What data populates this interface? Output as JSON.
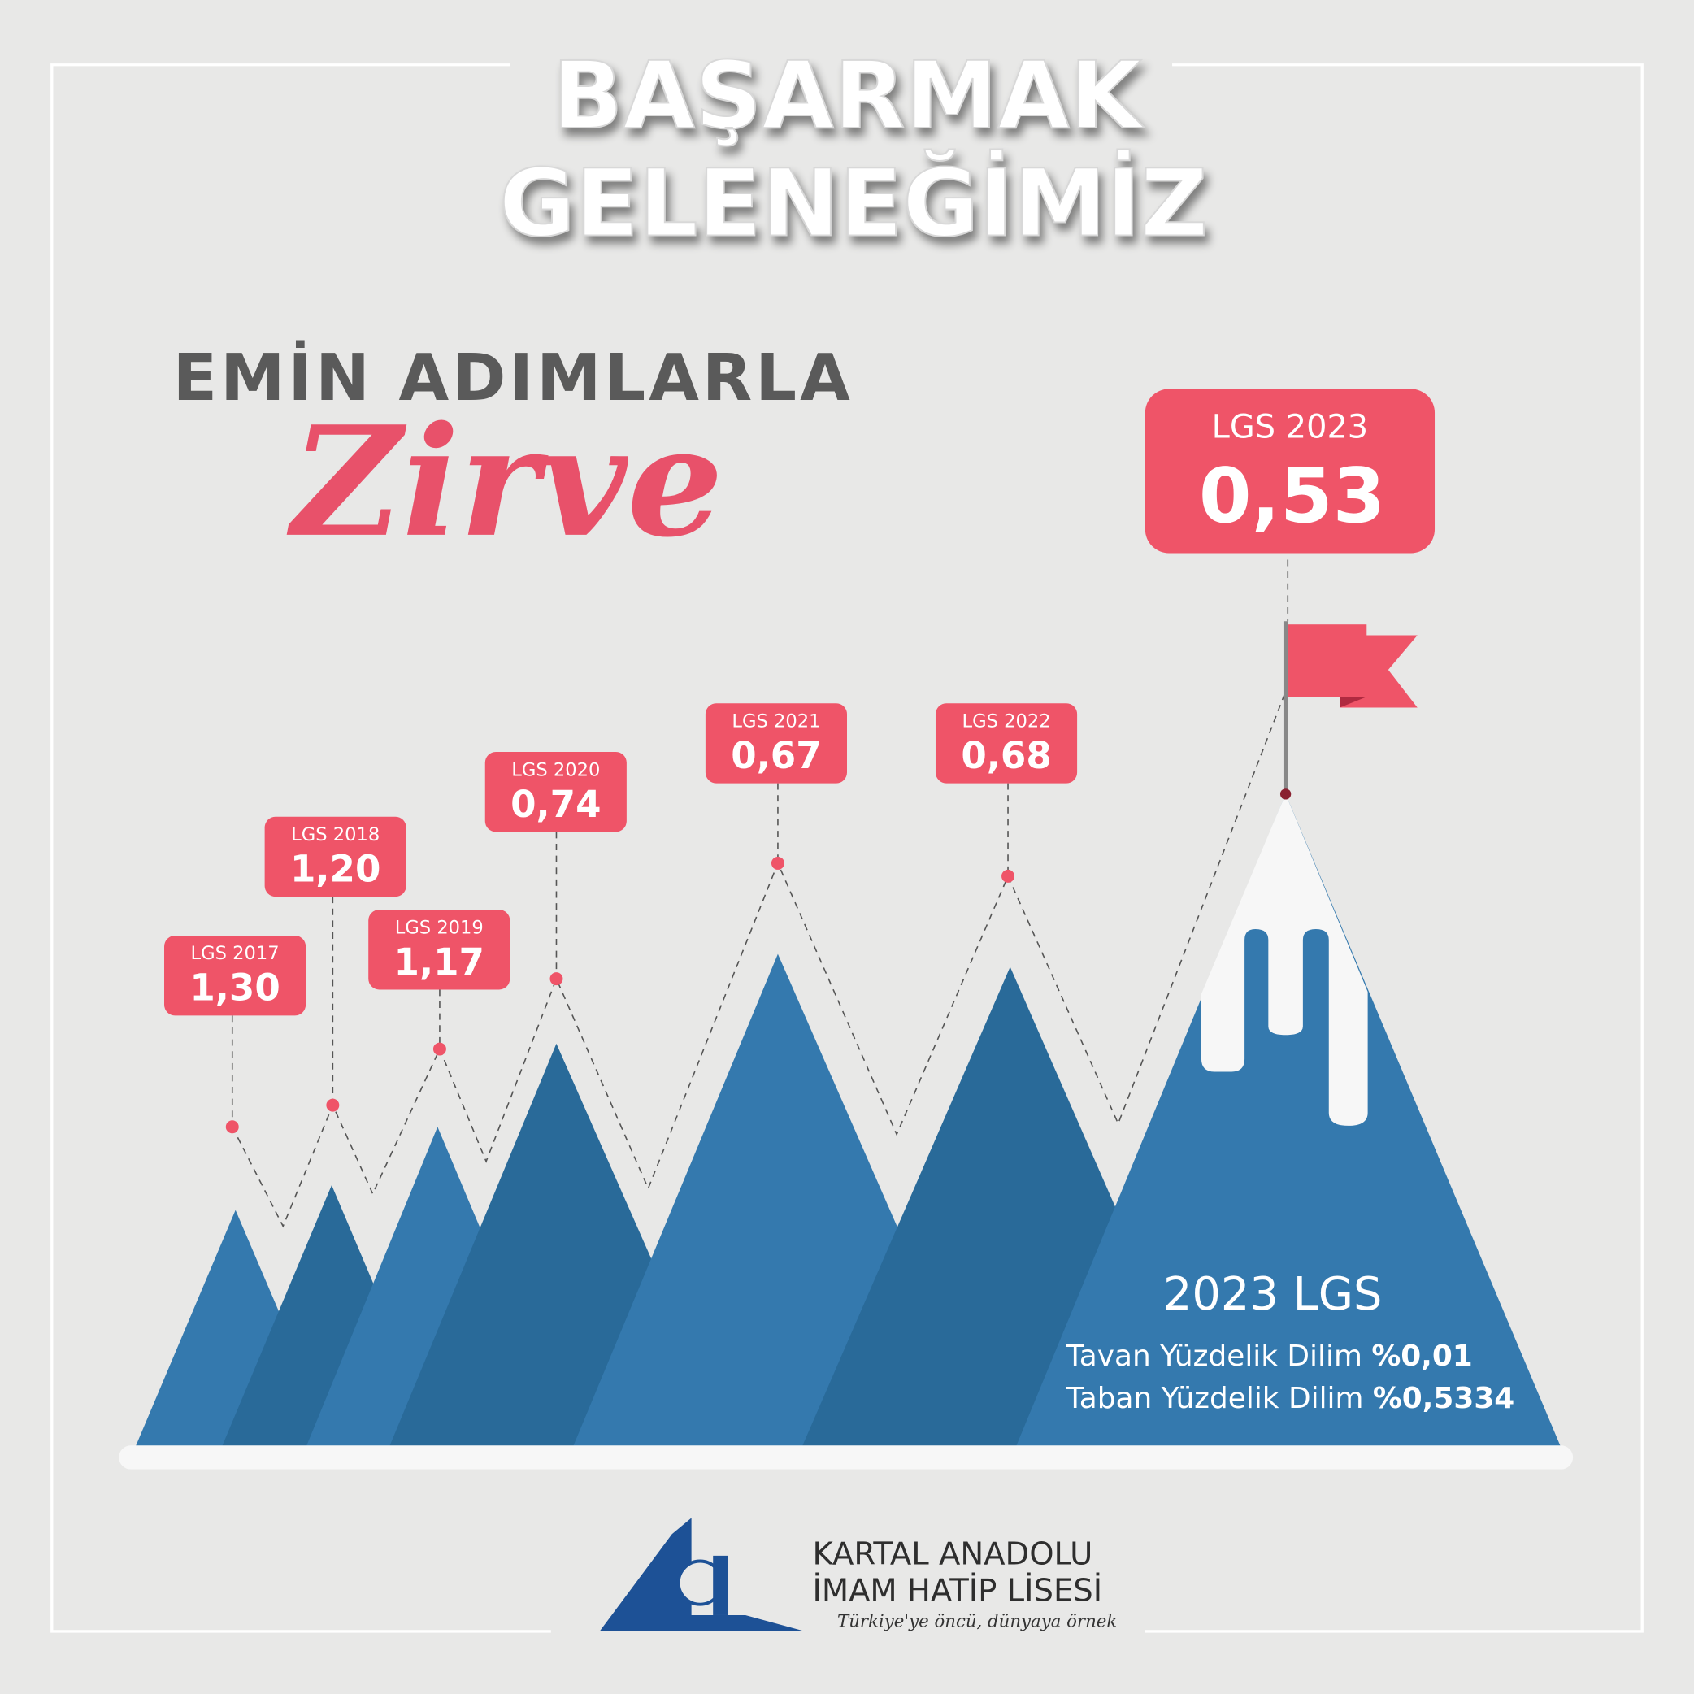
{
  "title": [
    "BAŞARMAK",
    "GELENEĞİMİZ"
  ],
  "subtitle": "EMİN ADIMLARLA",
  "script_title": "Zirve",
  "peaks": [
    {
      "label": "LGS 2017",
      "value": "1,30"
    },
    {
      "label": "LGS 2018",
      "value": "1,20"
    },
    {
      "label": "LGS 2019",
      "value": "1,17"
    },
    {
      "label": "LGS 2020",
      "value": "0,74"
    },
    {
      "label": "LGS 2021",
      "value": "0,67"
    },
    {
      "label": "LGS 2022",
      "value": "0,68"
    }
  ],
  "highlight": {
    "label": "LGS 2023",
    "value": "0,53"
  },
  "summary": {
    "title": "2023 LGS",
    "lines": [
      {
        "text": "Tavan Yüzdelik Dilim",
        "value": "%0,01"
      },
      {
        "text": "Taban Yüzdelik Dilim",
        "value": "%0,5334"
      }
    ]
  },
  "school": {
    "name": [
      "KARTAL ANADOLU",
      "İMAM HATİP LİSESİ"
    ],
    "motto": "Türkiye'ye öncü, dünyaya örnek"
  }
}
